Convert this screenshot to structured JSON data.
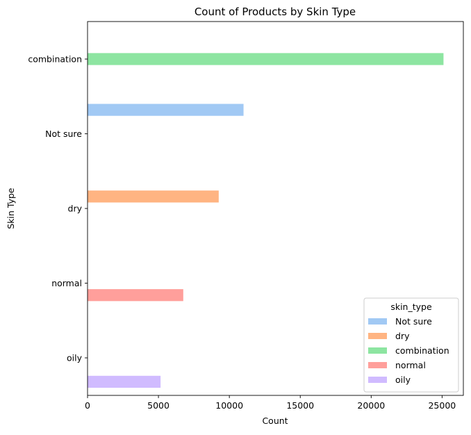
{
  "chart_data": {
    "type": "bar",
    "orientation": "horizontal",
    "title": "Count of Products by Skin Type",
    "xlabel": "Count",
    "ylabel": "Skin Type",
    "xlim": [
      0,
      26500
    ],
    "xticks": [
      0,
      5000,
      10000,
      15000,
      20000,
      25000
    ],
    "categories": [
      "combination",
      "Not sure",
      "dry",
      "normal",
      "oily"
    ],
    "legend": {
      "title": "skin_type",
      "placement": "lower right",
      "entries": [
        "Not sure",
        "dry",
        "combination",
        "normal",
        "oily"
      ]
    },
    "series": [
      {
        "name": "Not sure",
        "color": "#a1c9f4",
        "values": {
          "Not sure": 11000
        }
      },
      {
        "name": "dry",
        "color": "#ffb482",
        "values": {
          "dry": 9250
        }
      },
      {
        "name": "combination",
        "color": "#8de5a1",
        "values": {
          "combination": 25100
        }
      },
      {
        "name": "normal",
        "color": "#ff9f9b",
        "values": {
          "normal": 6750
        }
      },
      {
        "name": "oily",
        "color": "#d0bbff",
        "values": {
          "oily": 5150
        }
      }
    ],
    "grid": false
  }
}
